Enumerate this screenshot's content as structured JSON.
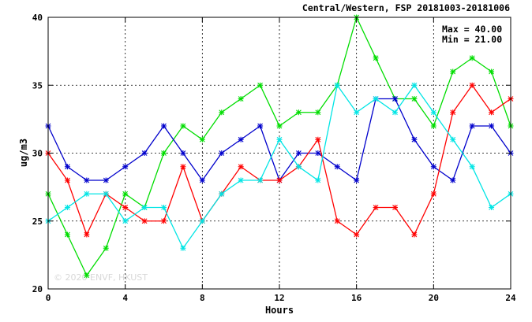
{
  "chart_data": {
    "type": "line",
    "title": "Central/Western, FSP 20181003-20181006",
    "xlabel": "Hours",
    "ylabel": "ug/m3",
    "xlim": [
      0,
      24
    ],
    "ylim": [
      20,
      40
    ],
    "xticks": [
      0,
      4,
      8,
      12,
      16,
      20,
      24
    ],
    "yticks": [
      20,
      25,
      30,
      35,
      40
    ],
    "grid": true,
    "max_label": "Max = 40.00",
    "min_label": "Min = 21.00",
    "watermark": "© 2020 ENVF, HKUST",
    "x": [
      0,
      1,
      2,
      3,
      4,
      5,
      6,
      7,
      8,
      9,
      10,
      11,
      12,
      13,
      14,
      15,
      16,
      17,
      18,
      19,
      20,
      21,
      22,
      23,
      24
    ],
    "series": [
      {
        "color": "#00dd00",
        "values": [
          27,
          24,
          21,
          23,
          27,
          26,
          30,
          32,
          31,
          33,
          34,
          35,
          32,
          33,
          33,
          35,
          40,
          37,
          34,
          34,
          32,
          36,
          37,
          36,
          32
        ]
      },
      {
        "color": "#0000cc",
        "values": [
          32,
          29,
          28,
          28,
          29,
          30,
          32,
          30,
          28,
          30,
          31,
          32,
          28,
          30,
          30,
          29,
          28,
          34,
          34,
          31,
          29,
          28,
          32,
          32,
          30
        ]
      },
      {
        "color": "#ff0000",
        "values": [
          30,
          28,
          24,
          27,
          26,
          25,
          25,
          29,
          25,
          27,
          29,
          28,
          28,
          29,
          31,
          25,
          24,
          26,
          26,
          24,
          27,
          33,
          35,
          33,
          34
        ]
      },
      {
        "color": "#00e5e5",
        "values": [
          25,
          26,
          27,
          27,
          25,
          26,
          26,
          23,
          25,
          27,
          28,
          28,
          31,
          29,
          28,
          35,
          33,
          34,
          33,
          35,
          33,
          31,
          29,
          26,
          27
        ]
      }
    ]
  }
}
